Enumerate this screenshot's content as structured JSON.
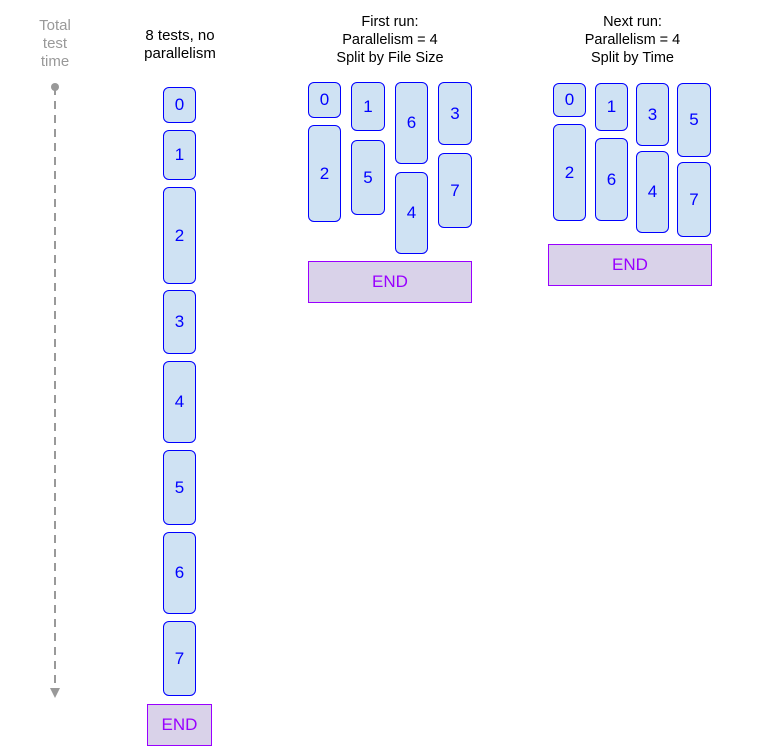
{
  "axis": {
    "label_lines": [
      "Total",
      "test",
      "time"
    ],
    "color": "#999999"
  },
  "columns": [
    {
      "title_lines": [
        "8 tests, no",
        "parallelism"
      ],
      "tests": [
        "0",
        "1",
        "2",
        "3",
        "4",
        "5",
        "6",
        "7"
      ],
      "end_label": "END"
    },
    {
      "title_lines": [
        "First run:",
        "Parallelism = 4",
        "Split by File Size"
      ],
      "tests": [
        "0",
        "1",
        "6",
        "3",
        "2",
        "5",
        "4",
        "7"
      ],
      "end_label": "END"
    },
    {
      "title_lines": [
        "Next run:",
        "Parallelism = 4",
        "Split by Time"
      ],
      "tests": [
        "0",
        "1",
        "3",
        "5",
        "2",
        "6",
        "4",
        "7"
      ],
      "end_label": "END"
    }
  ],
  "colors": {
    "test_fill": "#cfe2f3",
    "test_border": "#0000ff",
    "end_fill": "#d9d2e9",
    "end_border": "#9900ff"
  }
}
